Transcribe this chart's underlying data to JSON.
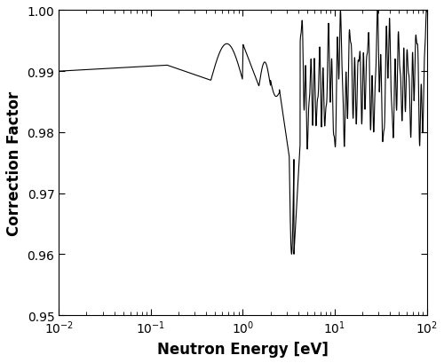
{
  "xlabel": "Neutron Energy [eV]",
  "ylabel": "Correction Factor",
  "xlim": [
    0.01,
    100
  ],
  "ylim": [
    0.95,
    1.0
  ],
  "yticks": [
    0.95,
    0.96,
    0.97,
    0.98,
    0.99,
    1.0
  ],
  "line_color": "#000000",
  "line_width": 0.8,
  "background_color": "#ffffff",
  "fig_width": 5.0,
  "fig_height": 4.1,
  "dpi": 100,
  "xlabel_fontsize": 12,
  "ylabel_fontsize": 12,
  "tick_fontsize": 10
}
